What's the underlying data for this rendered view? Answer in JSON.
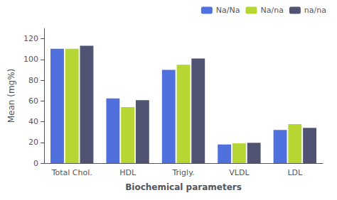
{
  "chart_data": {
    "type": "bar",
    "categories": [
      "Total Chol.",
      "HDL",
      "Trigly.",
      "VLDL",
      "LDL"
    ],
    "series": [
      {
        "name": "Na/Na",
        "values": [
          110.4,
          62.5,
          90.0,
          18.0,
          32.0
        ]
      },
      {
        "name": "Na/na",
        "values": [
          110.4,
          54.1,
          95.0,
          19.1,
          37.7
        ]
      },
      {
        "name": "na/na",
        "values": [
          113.2,
          60.7,
          101.0,
          19.6,
          34.0
        ]
      }
    ],
    "xlabel": "Biochemical parameters",
    "ylabel": "Mean (mg%)",
    "ylim": [
      0,
      130
    ],
    "yticks": [
      0,
      20,
      40,
      60,
      80,
      100,
      120
    ],
    "grid": false,
    "legend": "upper right"
  }
}
